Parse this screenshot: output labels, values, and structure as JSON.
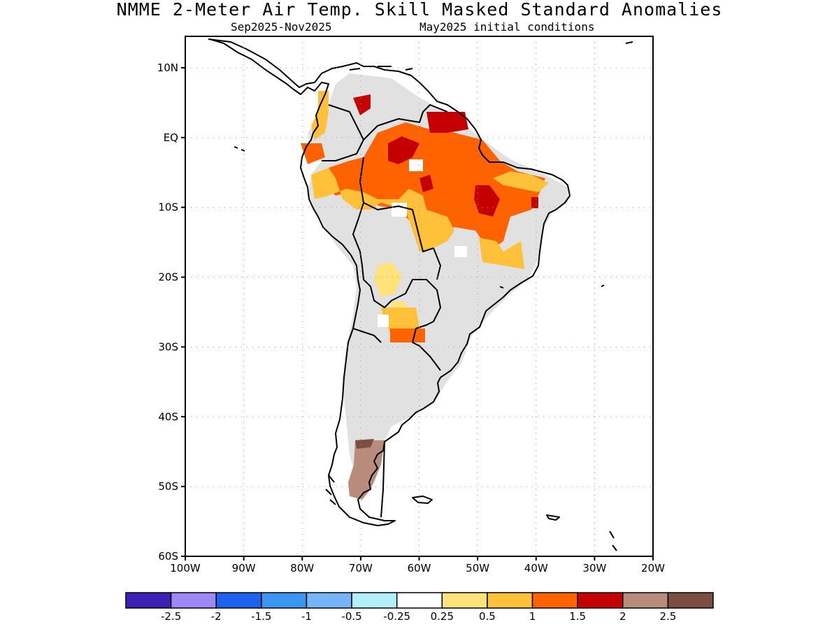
{
  "title": "NMME 2-Meter Air Temp. Skill Masked Standard Anomalies",
  "subtitle": {
    "season": "Sep2025-Nov2025",
    "init": "May2025 initial conditions"
  },
  "map": {
    "lon_range": [
      -100,
      -20
    ],
    "lat_range": [
      -60,
      14.5
    ],
    "lat_ticks": [
      {
        "value": 10,
        "label": "10N"
      },
      {
        "value": 0,
        "label": "EQ"
      },
      {
        "value": -10,
        "label": "10S"
      },
      {
        "value": -20,
        "label": "20S"
      },
      {
        "value": -30,
        "label": "30S"
      },
      {
        "value": -40,
        "label": "40S"
      },
      {
        "value": -50,
        "label": "50S"
      },
      {
        "value": -60,
        "label": "60S"
      }
    ],
    "lon_ticks": [
      {
        "value": -100,
        "label": "100W"
      },
      {
        "value": -90,
        "label": "90W"
      },
      {
        "value": -80,
        "label": "80W"
      },
      {
        "value": -70,
        "label": "70W"
      },
      {
        "value": -60,
        "label": "60W"
      },
      {
        "value": -50,
        "label": "50W"
      },
      {
        "value": -40,
        "label": "40W"
      },
      {
        "value": -30,
        "label": "30W"
      },
      {
        "value": -20,
        "label": "20W"
      }
    ],
    "colors": {
      "masked": "#e1e1e1",
      "coast": "#000000",
      "grid": "#9a9a9a"
    }
  },
  "colorbar": {
    "boxes": [
      "#3b22b4",
      "#9d88f7",
      "#1d62eb",
      "#3c95f0",
      "#76b4f8",
      "#b3effa",
      "#ffffff",
      "#ffe27a",
      "#ffc03a",
      "#ff6300",
      "#c50000",
      "#b98b7d",
      "#7a4e42"
    ],
    "labels": [
      "-2.5",
      "-2",
      "-1.5",
      "-1",
      "-0.5",
      "-0.25",
      "0.25",
      "0.5",
      "1",
      "1.5",
      "2",
      "2.5"
    ]
  }
}
